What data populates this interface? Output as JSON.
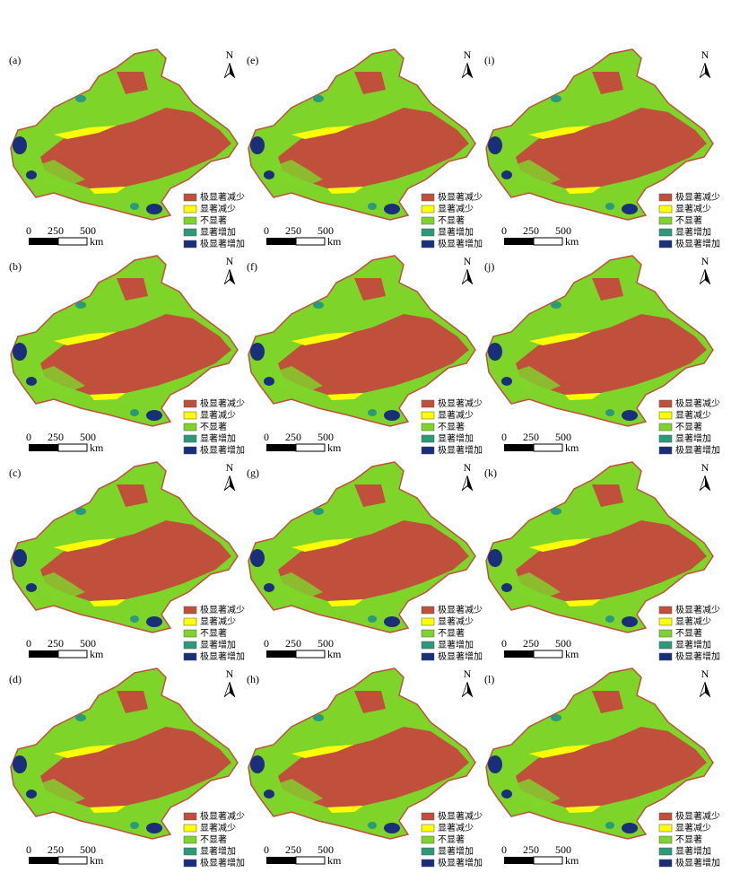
{
  "panels": [
    {
      "label": "(a)"
    },
    {
      "label": "(b)"
    },
    {
      "label": "(c)"
    },
    {
      "label": "(d)"
    },
    {
      "label": "(e)"
    },
    {
      "label": "(f)"
    },
    {
      "label": "(g)"
    },
    {
      "label": "(h)"
    },
    {
      "label": "(i)"
    },
    {
      "label": "(j)"
    },
    {
      "label": "(k)"
    },
    {
      "label": "(l)"
    }
  ],
  "north": "N",
  "legend": [
    {
      "label": "极显著减少",
      "color": "#c0503c"
    },
    {
      "label": "显著减少",
      "color": "#ffff00"
    },
    {
      "label": "不显著",
      "color": "#7fd42a"
    },
    {
      "label": "显著增加",
      "color": "#2a9a7a"
    },
    {
      "label": "极显著增加",
      "color": "#1a2f7a"
    }
  ],
  "scale": {
    "ticks": [
      "0",
      "250",
      "500"
    ],
    "unit": "km"
  }
}
